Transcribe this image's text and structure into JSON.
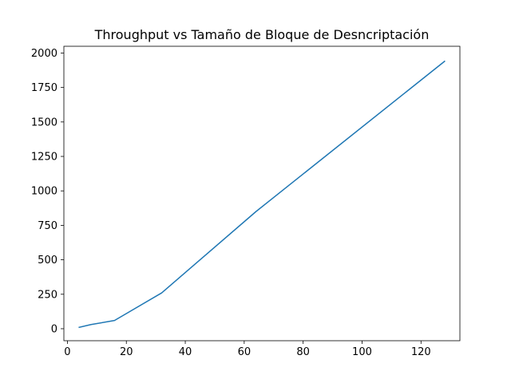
{
  "chart_data": {
    "type": "line",
    "title": "Throughput vs Tamaño de Bloque de Desncriptación",
    "xlabel": "",
    "ylabel": "",
    "xlim": [
      -1.2,
      133.2
    ],
    "ylim": [
      -87,
      2049
    ],
    "x_ticks": [
      0,
      20,
      40,
      60,
      80,
      100,
      120
    ],
    "y_ticks": [
      0,
      250,
      500,
      750,
      1000,
      1250,
      1500,
      1750,
      2000
    ],
    "grid": false,
    "legend": "none",
    "series": [
      {
        "color": "#1f77b4",
        "x": [
          4,
          8,
          16,
          32,
          64,
          128
        ],
        "y": [
          10,
          30,
          60,
          260,
          850,
          1940
        ]
      }
    ]
  }
}
